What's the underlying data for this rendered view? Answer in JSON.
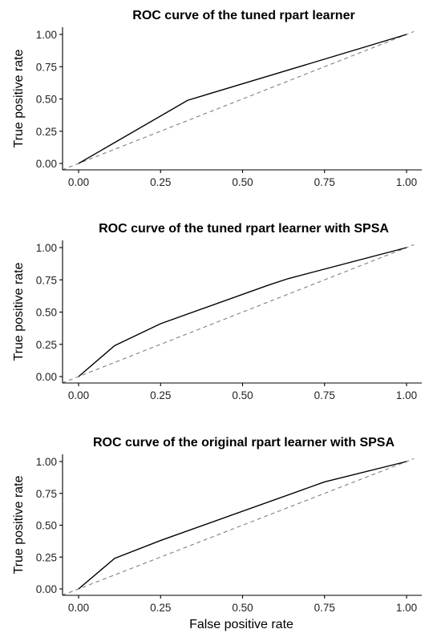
{
  "chart_data": [
    {
      "type": "line",
      "title": "ROC curve of the tuned rpart learner",
      "xlabel": "",
      "ylabel": "True positive rate",
      "xlim": [
        0,
        1
      ],
      "ylim": [
        0,
        1
      ],
      "x_ticks": [
        "0.00",
        "0.25",
        "0.50",
        "0.75",
        "1.00"
      ],
      "y_ticks": [
        "0.00",
        "0.25",
        "0.50",
        "0.75",
        "1.00"
      ],
      "grid": false,
      "series": [
        {
          "x": [
            0,
            0.333,
            1
          ],
          "y": [
            0,
            0.49,
            1
          ]
        }
      ],
      "reference_line": {
        "style": "dashed",
        "color": "#808080",
        "x": [
          0,
          1
        ],
        "y": [
          0,
          1
        ]
      }
    },
    {
      "type": "line",
      "title": "ROC curve of the tuned rpart learner with SPSA",
      "xlabel": "",
      "ylabel": "True positive rate",
      "xlim": [
        0,
        1
      ],
      "ylim": [
        0,
        1
      ],
      "x_ticks": [
        "0.00",
        "0.25",
        "0.50",
        "0.75",
        "1.00"
      ],
      "y_ticks": [
        "0.00",
        "0.25",
        "0.50",
        "0.75",
        "1.00"
      ],
      "grid": false,
      "series": [
        {
          "x": [
            0,
            0.11,
            0.25,
            0.58,
            0.64,
            1
          ],
          "y": [
            0,
            0.24,
            0.41,
            0.71,
            0.76,
            1
          ]
        }
      ],
      "reference_line": {
        "style": "dashed",
        "color": "#808080",
        "x": [
          0,
          1
        ],
        "y": [
          0,
          1
        ]
      }
    },
    {
      "type": "line",
      "title": "ROC curve of the original rpart learner with SPSA",
      "xlabel": "False positive rate",
      "ylabel": "True positive rate",
      "xlim": [
        0,
        1
      ],
      "ylim": [
        0,
        1
      ],
      "x_ticks": [
        "0.00",
        "0.25",
        "0.50",
        "0.75",
        "1.00"
      ],
      "y_ticks": [
        "0.00",
        "0.25",
        "0.50",
        "0.75",
        "1.00"
      ],
      "grid": false,
      "series": [
        {
          "x": [
            0,
            0.11,
            0.25,
            0.75,
            1
          ],
          "y": [
            0,
            0.24,
            0.38,
            0.84,
            1
          ]
        }
      ],
      "reference_line": {
        "style": "dashed",
        "color": "#808080",
        "x": [
          0,
          1
        ],
        "y": [
          0,
          1
        ]
      }
    }
  ]
}
